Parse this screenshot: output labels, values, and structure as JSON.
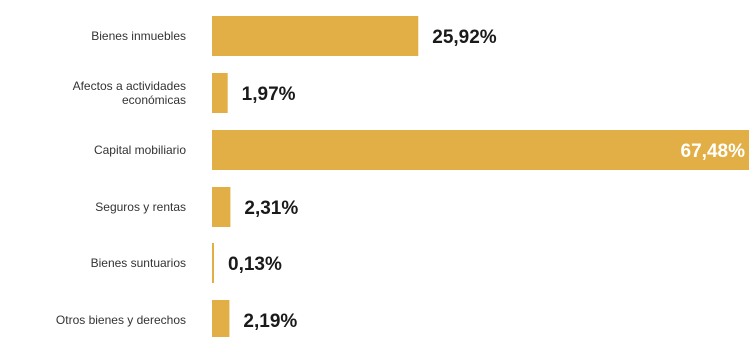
{
  "chart_data": {
    "type": "bar",
    "orientation": "horizontal",
    "title": "",
    "xlabel": "",
    "ylabel": "",
    "xlim": [
      0,
      67.48
    ],
    "grid": false,
    "legend": "none",
    "bar_color": "#E2AE46",
    "label_color": "#333333",
    "value_color": "#1A1A1A",
    "categories": [
      [
        "Bienes inmuebles"
      ],
      [
        "Afectos a actividades",
        "económicas"
      ],
      [
        "Capital mobiliario"
      ],
      [
        "Seguros y rentas"
      ],
      [
        "Bienes suntuarios"
      ],
      [
        "Otros bienes y derechos"
      ]
    ],
    "values": [
      25.92,
      1.97,
      67.48,
      2.31,
      0.13,
      2.19
    ],
    "value_labels": [
      "25,92%",
      "1,97%",
      "67,48%",
      "2,31%",
      "0,13%",
      "2,19%"
    ]
  }
}
